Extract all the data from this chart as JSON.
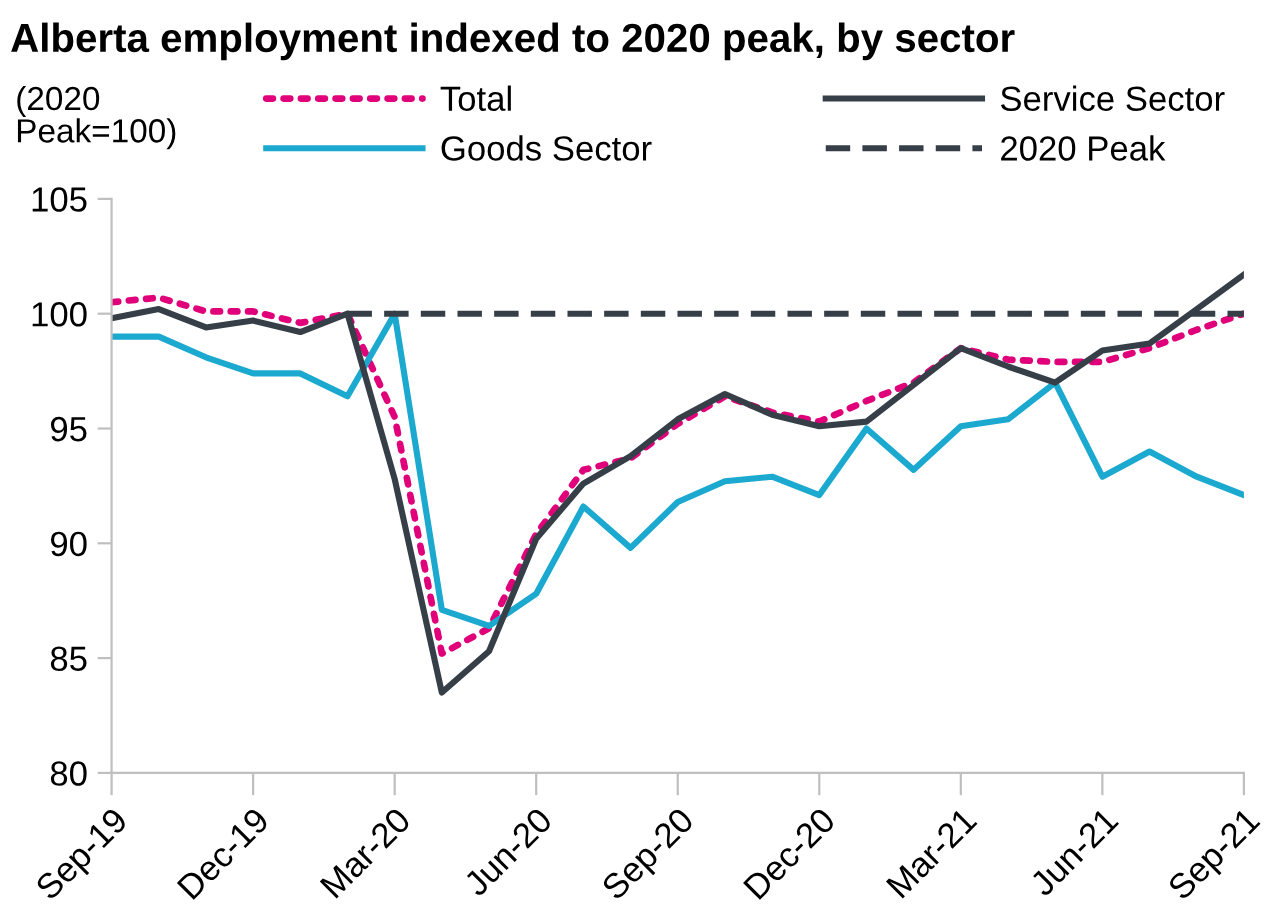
{
  "chart_data": {
    "type": "line",
    "title": "Alberta employment indexed to 2020 peak, by sector",
    "ylabel": "(2020\nPeak=100)",
    "categories": [
      "Sep-19",
      null,
      null,
      "Dec-19",
      null,
      null,
      "Mar-20",
      null,
      null,
      "Jun-20",
      null,
      null,
      "Sep-20",
      null,
      null,
      "Dec-20",
      null,
      null,
      "Mar-21",
      null,
      null,
      "Jun-21",
      null,
      null,
      "Sep-21"
    ],
    "series": [
      {
        "name": "Total",
        "color": "#e0007a",
        "line_style": "dotted",
        "values": [
          100.5,
          100.7,
          100.1,
          100.1,
          99.6,
          100,
          95.5,
          85.2,
          86.3,
          90.4,
          93.2,
          93.7,
          95.2,
          96.4,
          95.7,
          95.3,
          96.2,
          97.0,
          98.5,
          98.0,
          97.9,
          97.9,
          98.5,
          99.3,
          100
        ]
      },
      {
        "name": "Goods Sector",
        "color": "#1ba9cf",
        "line_style": "solid",
        "values": [
          99.0,
          99.0,
          98.1,
          97.4,
          97.4,
          96.4,
          100,
          87.1,
          86.4,
          87.8,
          91.6,
          89.8,
          91.8,
          92.7,
          92.9,
          92.1,
          95.0,
          93.2,
          95.1,
          95.4,
          97.0,
          92.9,
          94.0,
          92.9,
          92.1
        ]
      },
      {
        "name": "Service Sector",
        "color": "#363f48",
        "line_style": "solid",
        "values": [
          99.8,
          100.2,
          99.4,
          99.7,
          99.2,
          100,
          92.8,
          83.5,
          85.3,
          90.2,
          92.6,
          93.8,
          95.4,
          96.5,
          95.6,
          95.1,
          95.3,
          96.9,
          98.5,
          97.7,
          97.0,
          98.4,
          98.7,
          100.2,
          101.7
        ]
      },
      {
        "name": "2020 Peak",
        "color": "#363f48",
        "line_style": "dashed",
        "values": [
          null,
          null,
          null,
          null,
          null,
          100,
          100,
          100,
          100,
          100,
          100,
          100,
          100,
          100,
          100,
          100,
          100,
          100,
          100,
          100,
          100,
          100,
          100,
          100,
          100
        ]
      }
    ],
    "ylim": [
      80,
      105
    ],
    "yticks": [
      80,
      85,
      90,
      95,
      100,
      105
    ],
    "grid": false,
    "legend": "top",
    "marker": "none"
  }
}
